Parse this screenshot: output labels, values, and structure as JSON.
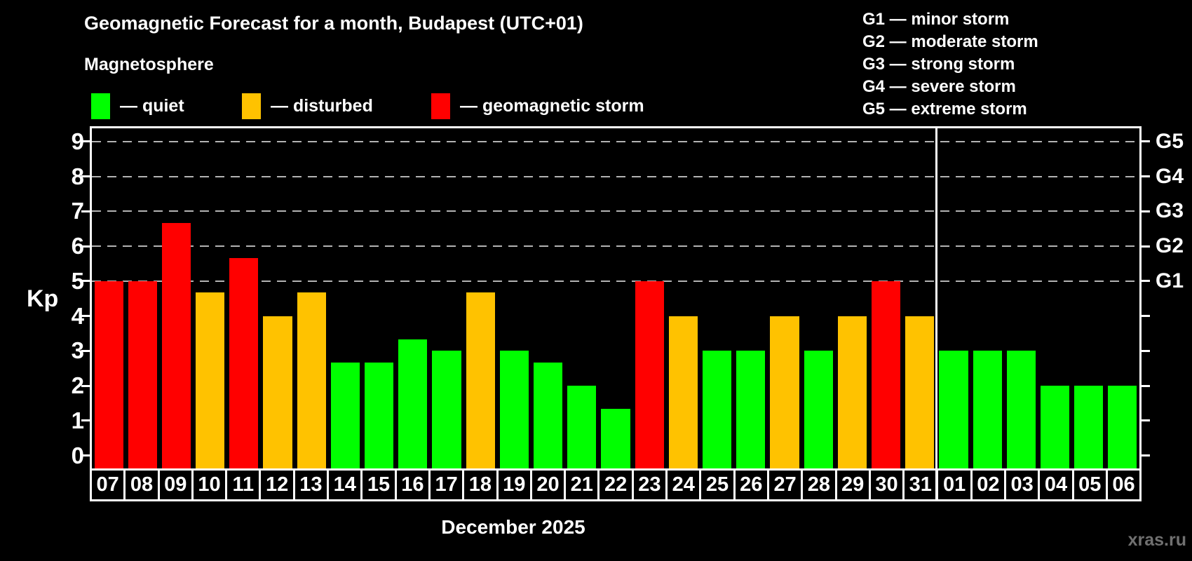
{
  "header": {
    "title": "Geomagnetic Forecast for a month, Budapest (UTC+01)",
    "subtitle": "Magnetosphere"
  },
  "legend": {
    "items": [
      {
        "label": "— quiet",
        "status": "quiet",
        "color": "#00ff00"
      },
      {
        "label": "— disturbed",
        "status": "disturbed",
        "color": "#ffc200"
      },
      {
        "label": "— geomagnetic storm",
        "status": "storm",
        "color": "#ff0000"
      }
    ]
  },
  "storm_scale_legend": {
    "items": [
      "G1 — minor storm",
      "G2 — moderate storm",
      "G3 — strong storm",
      "G4 — severe storm",
      "G5 — extreme storm"
    ]
  },
  "chart_data": {
    "type": "bar",
    "title": "Geomagnetic Forecast for a month, Budapest (UTC+01)",
    "ylabel": "Kp",
    "xlabel": "December 2025",
    "ylim": [
      0,
      9
    ],
    "yticks": [
      0,
      1,
      2,
      3,
      4,
      5,
      6,
      7,
      8,
      9
    ],
    "grid": "dashed horizontal lines at Kp 5-9 only",
    "legend_position": "top-left",
    "right_axis_labels": [
      {
        "kp": 5,
        "label": "G1"
      },
      {
        "kp": 6,
        "label": "G2"
      },
      {
        "kp": 7,
        "label": "G3"
      },
      {
        "kp": 8,
        "label": "G4"
      },
      {
        "kp": 9,
        "label": "G5"
      }
    ],
    "colors": {
      "quiet": "#00ff00",
      "disturbed": "#ffc200",
      "storm": "#ff0000"
    },
    "separator_after_category": "31",
    "bars": [
      {
        "date": "07",
        "kp": 5.0,
        "status": "storm"
      },
      {
        "date": "08",
        "kp": 5.0,
        "status": "storm"
      },
      {
        "date": "09",
        "kp": 6.67,
        "status": "storm"
      },
      {
        "date": "10",
        "kp": 4.67,
        "status": "disturbed"
      },
      {
        "date": "11",
        "kp": 5.67,
        "status": "storm"
      },
      {
        "date": "12",
        "kp": 4.0,
        "status": "disturbed"
      },
      {
        "date": "13",
        "kp": 4.67,
        "status": "disturbed"
      },
      {
        "date": "14",
        "kp": 2.67,
        "status": "quiet"
      },
      {
        "date": "15",
        "kp": 2.67,
        "status": "quiet"
      },
      {
        "date": "16",
        "kp": 3.33,
        "status": "quiet"
      },
      {
        "date": "17",
        "kp": 3.0,
        "status": "quiet"
      },
      {
        "date": "18",
        "kp": 4.67,
        "status": "disturbed"
      },
      {
        "date": "19",
        "kp": 3.0,
        "status": "quiet"
      },
      {
        "date": "20",
        "kp": 2.67,
        "status": "quiet"
      },
      {
        "date": "21",
        "kp": 2.0,
        "status": "quiet"
      },
      {
        "date": "22",
        "kp": 1.33,
        "status": "quiet"
      },
      {
        "date": "23",
        "kp": 5.0,
        "status": "storm"
      },
      {
        "date": "24",
        "kp": 4.0,
        "status": "disturbed"
      },
      {
        "date": "25",
        "kp": 3.0,
        "status": "quiet"
      },
      {
        "date": "26",
        "kp": 3.0,
        "status": "quiet"
      },
      {
        "date": "27",
        "kp": 4.0,
        "status": "disturbed"
      },
      {
        "date": "28",
        "kp": 3.0,
        "status": "quiet"
      },
      {
        "date": "29",
        "kp": 4.0,
        "status": "disturbed"
      },
      {
        "date": "30",
        "kp": 5.0,
        "status": "storm"
      },
      {
        "date": "31",
        "kp": 4.0,
        "status": "disturbed"
      },
      {
        "date": "01",
        "kp": 3.0,
        "status": "quiet"
      },
      {
        "date": "02",
        "kp": 3.0,
        "status": "quiet"
      },
      {
        "date": "03",
        "kp": 3.0,
        "status": "quiet"
      },
      {
        "date": "04",
        "kp": 2.0,
        "status": "quiet"
      },
      {
        "date": "05",
        "kp": 2.0,
        "status": "quiet"
      },
      {
        "date": "06",
        "kp": 2.0,
        "status": "quiet"
      }
    ]
  },
  "footer": {
    "month_label": "December 2025",
    "watermark": "xras.ru"
  }
}
